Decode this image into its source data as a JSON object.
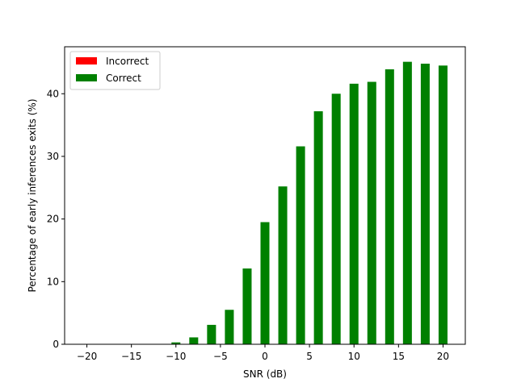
{
  "chart_data": {
    "type": "bar",
    "xlabel": "SNR (dB)",
    "ylabel": "Percentage of early inferences exits (%)",
    "xlim": [
      -22.5,
      22.5
    ],
    "ylim": [
      0,
      47.5
    ],
    "xticks": [
      -20,
      -15,
      -10,
      -5,
      0,
      5,
      10,
      15,
      20
    ],
    "yticks": [
      0,
      10,
      20,
      30,
      40
    ],
    "grid": false,
    "legend_position": "top-left",
    "x": [
      -20,
      -18,
      -16,
      -14,
      -12,
      -10,
      -8,
      -6,
      -4,
      -2,
      0,
      2,
      4,
      6,
      8,
      10,
      12,
      14,
      16,
      18,
      20
    ],
    "series": [
      {
        "name": "Incorrect",
        "color": "#ff0000",
        "values": [
          0,
          0,
          0,
          0,
          0,
          0,
          0,
          0,
          0,
          0,
          0,
          0,
          0,
          0,
          0,
          0,
          0,
          0,
          0,
          0,
          0
        ]
      },
      {
        "name": "Correct",
        "color": "#008000",
        "values": [
          0,
          0,
          0,
          0,
          0,
          0.3,
          1.1,
          3.1,
          5.5,
          12.1,
          19.5,
          25.2,
          31.6,
          37.2,
          40.0,
          41.6,
          41.9,
          43.9,
          45.1,
          44.8,
          44.5
        ]
      }
    ]
  }
}
